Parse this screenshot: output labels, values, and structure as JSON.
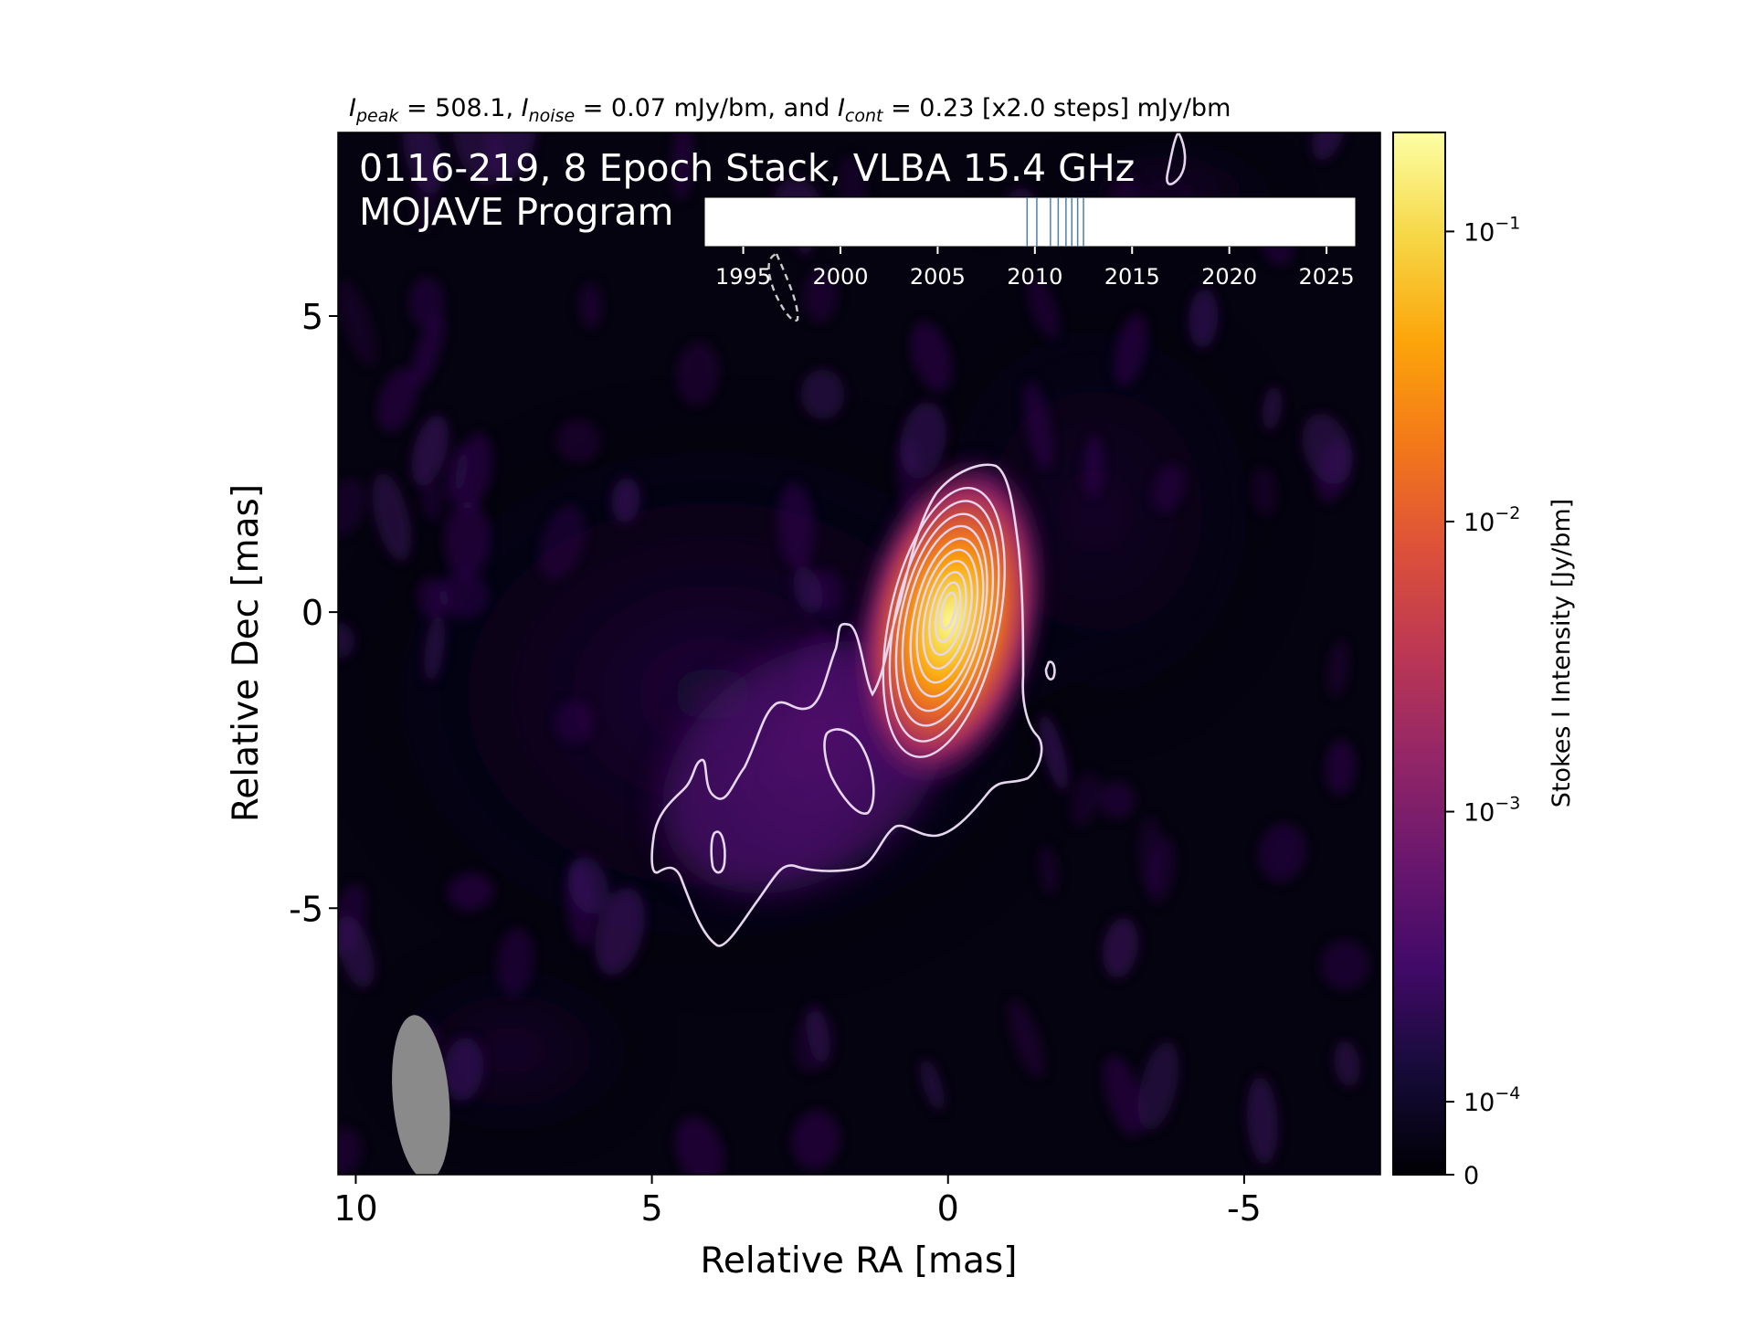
{
  "chart_data": {
    "type": "heatmap",
    "header": {
      "peak_sym": "I",
      "peak_sub": "peak",
      "peak_rest": " = 508.1, ",
      "noise_sym": "I",
      "noise_sub": "noise",
      "noise_rest": " = 0.07 mJy/bm, and ",
      "cont_sym": "I",
      "cont_sub": "cont",
      "cont_rest": " = 0.23 [x2.0 steps] mJy/bm"
    },
    "title_line1": "0116-219, 8 Epoch Stack, VLBA 15.4 GHz",
    "title_line2": "MOJAVE Program",
    "xlabel": "Relative RA [mas]",
    "ylabel": "Relative Dec [mas]",
    "xlim": [
      10.3,
      -7.3
    ],
    "ylim": [
      -9.5,
      8.1
    ],
    "x_ticks": [
      {
        "value": 10,
        "label": "10"
      },
      {
        "value": 5,
        "label": "5"
      },
      {
        "value": 0,
        "label": "0"
      },
      {
        "value": -5,
        "label": "-5"
      }
    ],
    "y_ticks": [
      {
        "value": 5,
        "label": "5"
      },
      {
        "value": 0,
        "label": "0"
      },
      {
        "value": -5,
        "label": "-5"
      }
    ],
    "colorbar": {
      "label": "Stokes I Intensity [Jy/bm]",
      "colormap": "inferno",
      "scale": "log",
      "ticks": [
        {
          "value": 0.1,
          "base": "10",
          "exp": "−1"
        },
        {
          "value": 0.01,
          "base": "10",
          "exp": "−2"
        },
        {
          "value": 0.001,
          "base": "10",
          "exp": "−3"
        },
        {
          "value": 0.0001,
          "base": "10",
          "exp": "−4"
        },
        {
          "value": 0,
          "base": "0",
          "exp": ""
        }
      ]
    },
    "epoch_timeline": {
      "xlim": [
        1993,
        2026.5
      ],
      "ticks": [
        "1995",
        "2000",
        "2005",
        "2010",
        "2015",
        "2020",
        "2025"
      ],
      "epochs": [
        2009.6,
        2010.1,
        2010.8,
        2011.2,
        2011.6,
        2011.9,
        2012.2,
        2012.5
      ],
      "line_color": "#4a7fb0"
    },
    "beam": {
      "ra": 8.9,
      "dec": -8.2,
      "major_mas": 2.8,
      "minor_mas": 0.95,
      "pa_deg": -5,
      "color": "#8a8a8a"
    },
    "contour_color": "#e6d6ee"
  }
}
